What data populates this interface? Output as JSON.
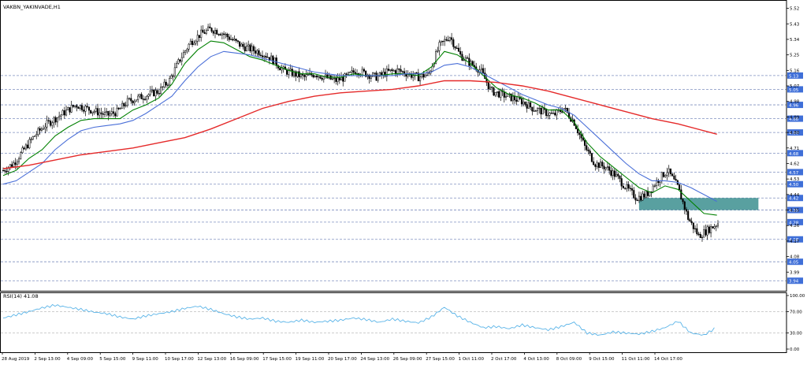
{
  "colors": {
    "background": "#ffffff",
    "axis": "#000000",
    "grid": "#7f8fbf",
    "candle": "#000000",
    "sma_fast": "#008000",
    "sma_mid": "#4a6fd8",
    "sma_slow": "#e52a2a",
    "zone": "#3c8f8f",
    "rsi_line": "#5ab4e8",
    "price_tag": "#3f6fd8",
    "price_tag_text": "#ffffff"
  },
  "chart_data": [
    {
      "type": "candlestick",
      "title": "VAKBN_YAKINVADE,H1",
      "ylim": [
        3.9,
        5.55
      ],
      "y_ticks": [
        "5.52",
        "5.43",
        "5.34",
        "5.25",
        "5.16",
        "5.07",
        "4.98",
        "4.89",
        "4.80",
        "4.71",
        "4.62",
        "4.53",
        "4.44",
        "4.35",
        "4.26",
        "4.17",
        "4.08",
        "3.99"
      ],
      "price_levels": [
        "5.13",
        "5.05",
        "4.96",
        "4.88",
        "4.80",
        "4.68",
        "4.57",
        "4.50",
        "4.42",
        "4.35",
        "4.28",
        "4.18",
        "4.05",
        "3.94"
      ],
      "x_ticks": [
        "28 Aug 2019",
        "2 Sep 13:00",
        "4 Sep 09:00",
        "5 Sep 15:00",
        "9 Sep 11:00",
        "10 Sep 17:00",
        "12 Sep 13:00",
        "16 Sep 09:00",
        "17 Sep 15:00",
        "19 Sep 11:00",
        "20 Sep 17:00",
        "24 Sep 13:00",
        "26 Sep 09:00",
        "27 Sep 15:00",
        "1 Oct 11:00",
        "2 Oct 17:00",
        "4 Oct 13:00",
        "8 Oct 09:00",
        "9 Oct 15:00",
        "11 Oct 11:00",
        "14 Oct 17:00"
      ],
      "price_path": [
        [
          0,
          4.58
        ],
        [
          8,
          4.62
        ],
        [
          16,
          4.7
        ],
        [
          24,
          4.78
        ],
        [
          32,
          4.84
        ],
        [
          40,
          4.88
        ],
        [
          48,
          4.92
        ],
        [
          56,
          4.96
        ],
        [
          64,
          4.94
        ],
        [
          72,
          4.92
        ],
        [
          80,
          4.9
        ],
        [
          88,
          4.92
        ],
        [
          96,
          4.98
        ],
        [
          104,
          5.0
        ],
        [
          112,
          5.02
        ],
        [
          120,
          5.04
        ],
        [
          128,
          5.1
        ],
        [
          136,
          5.22
        ],
        [
          144,
          5.32
        ],
        [
          152,
          5.37
        ],
        [
          160,
          5.4
        ],
        [
          168,
          5.38
        ],
        [
          176,
          5.34
        ],
        [
          184,
          5.3
        ],
        [
          192,
          5.28
        ],
        [
          200,
          5.26
        ],
        [
          208,
          5.22
        ],
        [
          216,
          5.16
        ],
        [
          224,
          5.14
        ],
        [
          232,
          5.12
        ],
        [
          240,
          5.14
        ],
        [
          248,
          5.12
        ],
        [
          256,
          5.1
        ],
        [
          264,
          5.12
        ],
        [
          272,
          5.16
        ],
        [
          280,
          5.14
        ],
        [
          288,
          5.12
        ],
        [
          296,
          5.15
        ],
        [
          304,
          5.16
        ],
        [
          312,
          5.14
        ],
        [
          320,
          5.12
        ],
        [
          328,
          5.14
        ],
        [
          336,
          5.3
        ],
        [
          344,
          5.36
        ],
        [
          352,
          5.25
        ],
        [
          360,
          5.2
        ],
        [
          368,
          5.16
        ],
        [
          376,
          5.04
        ],
        [
          384,
          5.02
        ],
        [
          392,
          5.0
        ],
        [
          400,
          4.98
        ],
        [
          408,
          4.94
        ],
        [
          416,
          4.92
        ],
        [
          424,
          4.9
        ],
        [
          432,
          4.94
        ],
        [
          440,
          4.86
        ],
        [
          448,
          4.72
        ],
        [
          456,
          4.62
        ],
        [
          464,
          4.6
        ],
        [
          472,
          4.55
        ],
        [
          480,
          4.48
        ],
        [
          488,
          4.42
        ],
        [
          496,
          4.44
        ],
        [
          504,
          4.52
        ],
        [
          512,
          4.58
        ],
        [
          520,
          4.48
        ],
        [
          528,
          4.3
        ],
        [
          536,
          4.2
        ],
        [
          544,
          4.24
        ],
        [
          552,
          4.28
        ]
      ],
      "series": [
        {
          "name": "",
          "points": [
            [
              0,
              4.55
            ],
            [
              10,
              4.58
            ],
            [
              20,
              4.65
            ],
            [
              30,
              4.7
            ],
            [
              40,
              4.78
            ],
            [
              50,
              4.83
            ],
            [
              60,
              4.87
            ],
            [
              70,
              4.88
            ],
            [
              80,
              4.88
            ],
            [
              90,
              4.88
            ],
            [
              100,
              4.93
            ],
            [
              110,
              4.96
            ],
            [
              120,
              5.0
            ],
            [
              130,
              5.08
            ],
            [
              140,
              5.2
            ],
            [
              150,
              5.28
            ],
            [
              160,
              5.33
            ],
            [
              170,
              5.32
            ],
            [
              180,
              5.28
            ],
            [
              190,
              5.24
            ],
            [
              200,
              5.22
            ],
            [
              210,
              5.19
            ],
            [
              220,
              5.16
            ],
            [
              230,
              5.14
            ],
            [
              240,
              5.14
            ],
            [
              250,
              5.12
            ],
            [
              260,
              5.12
            ],
            [
              270,
              5.14
            ],
            [
              280,
              5.13
            ],
            [
              290,
              5.13
            ],
            [
              300,
              5.14
            ],
            [
              310,
              5.14
            ],
            [
              320,
              5.13
            ],
            [
              330,
              5.18
            ],
            [
              340,
              5.27
            ],
            [
              350,
              5.25
            ],
            [
              360,
              5.2
            ],
            [
              370,
              5.13
            ],
            [
              380,
              5.06
            ],
            [
              390,
              5.02
            ],
            [
              400,
              5.0
            ],
            [
              410,
              4.97
            ],
            [
              420,
              4.93
            ],
            [
              430,
              4.93
            ],
            [
              440,
              4.86
            ],
            [
              450,
              4.74
            ],
            [
              460,
              4.66
            ],
            [
              470,
              4.6
            ],
            [
              480,
              4.54
            ],
            [
              490,
              4.48
            ],
            [
              500,
              4.45
            ],
            [
              510,
              4.49
            ],
            [
              520,
              4.47
            ],
            [
              530,
              4.4
            ],
            [
              540,
              4.33
            ],
            [
              550,
              4.32
            ]
          ]
        },
        {
          "name": "",
          "points": [
            [
              0,
              4.5
            ],
            [
              10,
              4.52
            ],
            [
              20,
              4.57
            ],
            [
              30,
              4.62
            ],
            [
              40,
              4.7
            ],
            [
              50,
              4.76
            ],
            [
              60,
              4.81
            ],
            [
              70,
              4.83
            ],
            [
              80,
              4.84
            ],
            [
              90,
              4.85
            ],
            [
              100,
              4.87
            ],
            [
              110,
              4.91
            ],
            [
              120,
              4.96
            ],
            [
              130,
              5.01
            ],
            [
              140,
              5.1
            ],
            [
              150,
              5.18
            ],
            [
              160,
              5.24
            ],
            [
              170,
              5.27
            ],
            [
              180,
              5.26
            ],
            [
              190,
              5.25
            ],
            [
              200,
              5.23
            ],
            [
              210,
              5.21
            ],
            [
              220,
              5.19
            ],
            [
              230,
              5.17
            ],
            [
              240,
              5.15
            ],
            [
              250,
              5.14
            ],
            [
              260,
              5.13
            ],
            [
              270,
              5.13
            ],
            [
              280,
              5.13
            ],
            [
              290,
              5.13
            ],
            [
              300,
              5.13
            ],
            [
              310,
              5.14
            ],
            [
              320,
              5.14
            ],
            [
              330,
              5.15
            ],
            [
              340,
              5.19
            ],
            [
              350,
              5.2
            ],
            [
              360,
              5.18
            ],
            [
              370,
              5.14
            ],
            [
              380,
              5.1
            ],
            [
              390,
              5.06
            ],
            [
              400,
              5.02
            ],
            [
              410,
              4.99
            ],
            [
              420,
              4.96
            ],
            [
              430,
              4.94
            ],
            [
              440,
              4.9
            ],
            [
              450,
              4.83
            ],
            [
              460,
              4.76
            ],
            [
              470,
              4.69
            ],
            [
              480,
              4.62
            ],
            [
              490,
              4.56
            ],
            [
              500,
              4.52
            ],
            [
              510,
              4.52
            ],
            [
              520,
              4.51
            ],
            [
              530,
              4.48
            ],
            [
              540,
              4.44
            ],
            [
              550,
              4.4
            ]
          ]
        },
        {
          "name": "",
          "points": [
            [
              0,
              4.59
            ],
            [
              20,
              4.61
            ],
            [
              40,
              4.64
            ],
            [
              60,
              4.67
            ],
            [
              80,
              4.69
            ],
            [
              100,
              4.71
            ],
            [
              120,
              4.74
            ],
            [
              140,
              4.77
            ],
            [
              160,
              4.82
            ],
            [
              180,
              4.88
            ],
            [
              200,
              4.94
            ],
            [
              220,
              4.98
            ],
            [
              240,
              5.01
            ],
            [
              260,
              5.03
            ],
            [
              280,
              5.04
            ],
            [
              300,
              5.05
            ],
            [
              320,
              5.07
            ],
            [
              340,
              5.1
            ],
            [
              360,
              5.1
            ],
            [
              380,
              5.09
            ],
            [
              400,
              5.07
            ],
            [
              420,
              5.04
            ],
            [
              440,
              5.0
            ],
            [
              460,
              4.96
            ],
            [
              480,
              4.92
            ],
            [
              500,
              4.88
            ],
            [
              520,
              4.85
            ],
            [
              540,
              4.81
            ],
            [
              550,
              4.79
            ]
          ]
        }
      ],
      "zone": {
        "x_from": 490,
        "x_to": 582,
        "y_low": 4.35,
        "y_high": 4.42
      }
    },
    {
      "type": "line",
      "title": "RSI(14) 41.08",
      "ylim": [
        0,
        100
      ],
      "y_ticks": [
        "100.00",
        "70.00",
        "30.00",
        "0.00"
      ],
      "series": [
        {
          "name": "",
          "points": [
            [
              0,
              58
            ],
            [
              10,
              64
            ],
            [
              20,
              70
            ],
            [
              30,
              77
            ],
            [
              40,
              82
            ],
            [
              50,
              78
            ],
            [
              60,
              74
            ],
            [
              70,
              69
            ],
            [
              80,
              66
            ],
            [
              90,
              60
            ],
            [
              100,
              56
            ],
            [
              110,
              62
            ],
            [
              120,
              66
            ],
            [
              130,
              70
            ],
            [
              140,
              76
            ],
            [
              150,
              80
            ],
            [
              160,
              74
            ],
            [
              170,
              66
            ],
            [
              180,
              60
            ],
            [
              190,
              56
            ],
            [
              200,
              58
            ],
            [
              210,
              52
            ],
            [
              220,
              50
            ],
            [
              230,
              54
            ],
            [
              240,
              50
            ],
            [
              250,
              52
            ],
            [
              260,
              54
            ],
            [
              270,
              58
            ],
            [
              280,
              55
            ],
            [
              290,
              50
            ],
            [
              300,
              56
            ],
            [
              310,
              52
            ],
            [
              320,
              49
            ],
            [
              330,
              60
            ],
            [
              340,
              78
            ],
            [
              350,
              62
            ],
            [
              360,
              50
            ],
            [
              370,
              40
            ],
            [
              380,
              42
            ],
            [
              390,
              38
            ],
            [
              400,
              45
            ],
            [
              410,
              40
            ],
            [
              420,
              36
            ],
            [
              430,
              42
            ],
            [
              440,
              50
            ],
            [
              450,
              30
            ],
            [
              460,
              26
            ],
            [
              470,
              32
            ],
            [
              480,
              30
            ],
            [
              490,
              28
            ],
            [
              500,
              33
            ],
            [
              510,
              40
            ],
            [
              520,
              52
            ],
            [
              530,
              30
            ],
            [
              540,
              26
            ],
            [
              550,
              41
            ]
          ]
        }
      ]
    }
  ]
}
